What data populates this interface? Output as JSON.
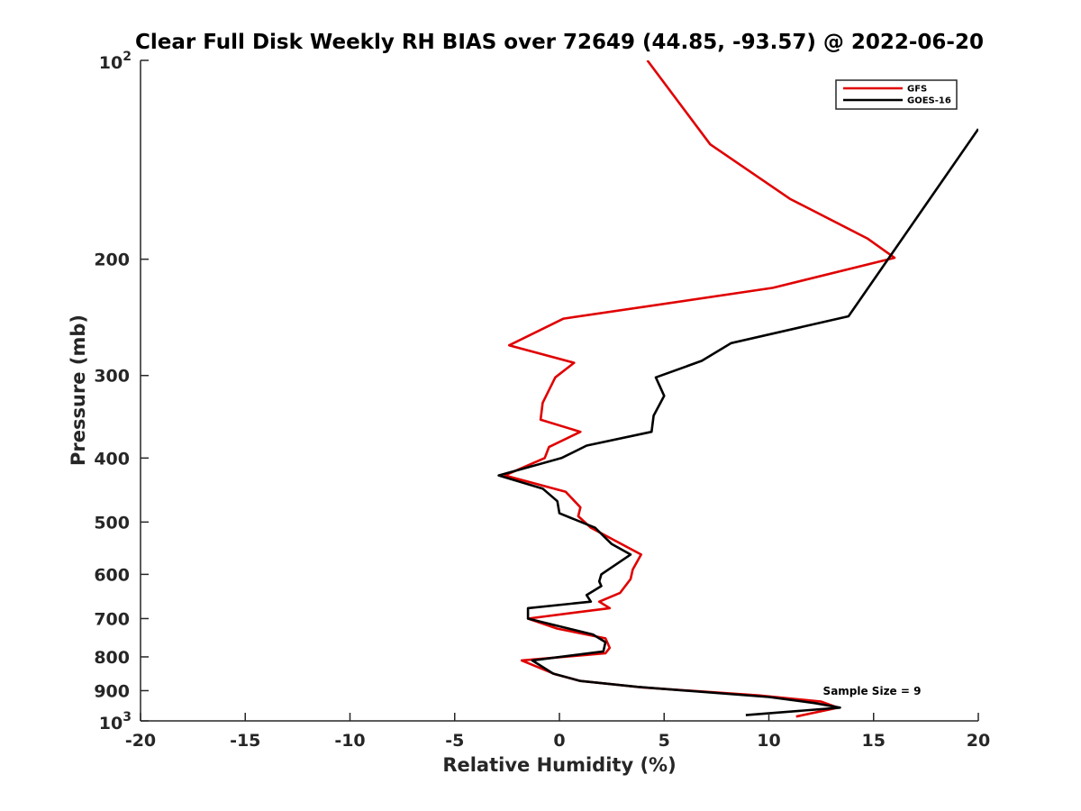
{
  "chart_data": {
    "type": "line",
    "title": "Clear Full Disk Weekly RH BIAS over 72649 (44.85, -93.57) @ 2022-06-20",
    "xlabel": "Relative Humidity (%)",
    "ylabel": "Pressure (mb)",
    "xlim": [
      -20,
      20
    ],
    "ylim": [
      100,
      1000
    ],
    "y_scale": "log",
    "y_reversed": true,
    "grid": false,
    "legend_position": "top-right",
    "x_ticks": [
      "-20",
      "-15",
      "-10",
      "-5",
      "0",
      "5",
      "10",
      "15",
      "20"
    ],
    "y_ticks": [
      {
        "value": 100,
        "base": "10",
        "exp": "2"
      },
      {
        "value": 200,
        "label": "200"
      },
      {
        "value": 300,
        "label": "300"
      },
      {
        "value": 400,
        "label": "400"
      },
      {
        "value": 500,
        "label": "500"
      },
      {
        "value": 600,
        "label": "600"
      },
      {
        "value": 700,
        "label": "700"
      },
      {
        "value": 800,
        "label": "800"
      },
      {
        "value": 900,
        "label": "900"
      },
      {
        "value": 1000,
        "base": "10",
        "exp": "3"
      }
    ],
    "annotation": "Sample Size = 9",
    "series": [
      {
        "name": "GFS",
        "color": "#e00000",
        "points": [
          [
            4.2,
            100
          ],
          [
            7.2,
            134
          ],
          [
            11,
            162
          ],
          [
            14.7,
            186
          ],
          [
            16,
            199
          ],
          [
            10.2,
            221
          ],
          [
            0.2,
            246
          ],
          [
            -2.4,
            270
          ],
          [
            0.7,
            287
          ],
          [
            -0.2,
            302
          ],
          [
            -0.8,
            330
          ],
          [
            -0.9,
            350
          ],
          [
            1,
            365
          ],
          [
            -0.5,
            385
          ],
          [
            -0.7,
            400
          ],
          [
            -2.6,
            425
          ],
          [
            0.3,
            450
          ],
          [
            1,
            475
          ],
          [
            0.9,
            490
          ],
          [
            1.5,
            510
          ],
          [
            3.9,
            560
          ],
          [
            3.5,
            590
          ],
          [
            3.4,
            610
          ],
          [
            2.9,
            640
          ],
          [
            1.9,
            660
          ],
          [
            2.4,
            675
          ],
          [
            -1.5,
            700
          ],
          [
            -0.1,
            725
          ],
          [
            2.2,
            750
          ],
          [
            2.4,
            775
          ],
          [
            2.2,
            790
          ],
          [
            -1.8,
            810
          ],
          [
            -0.2,
            850
          ],
          [
            1,
            870
          ],
          [
            4,
            890
          ],
          [
            9.5,
            915
          ],
          [
            12.5,
            935
          ],
          [
            13.3,
            955
          ],
          [
            11.3,
            985
          ]
        ]
      },
      {
        "name": "GOES-16",
        "color": "#000000",
        "points": [
          [
            20,
            127
          ],
          [
            13.8,
            244
          ],
          [
            8.2,
            268
          ],
          [
            6.8,
            285
          ],
          [
            4.6,
            302
          ],
          [
            5,
            322
          ],
          [
            4.5,
            345
          ],
          [
            4.4,
            365
          ],
          [
            1.3,
            383
          ],
          [
            0.1,
            400
          ],
          [
            -2.9,
            425
          ],
          [
            -0.8,
            445
          ],
          [
            -0.1,
            465
          ],
          [
            0,
            485
          ],
          [
            1.7,
            510
          ],
          [
            2.5,
            540
          ],
          [
            3.4,
            560
          ],
          [
            2,
            600
          ],
          [
            1.9,
            615
          ],
          [
            2,
            625
          ],
          [
            1.3,
            645
          ],
          [
            1.5,
            660
          ],
          [
            -1.5,
            675
          ],
          [
            -1.5,
            700
          ],
          [
            1.6,
            740
          ],
          [
            2.2,
            760
          ],
          [
            2.1,
            785
          ],
          [
            -1.3,
            810
          ],
          [
            -0.3,
            848
          ],
          [
            1,
            870
          ],
          [
            3.7,
            888
          ],
          [
            10,
            920
          ],
          [
            12.2,
            940
          ],
          [
            13.4,
            955
          ],
          [
            8.9,
            980
          ]
        ]
      }
    ]
  }
}
